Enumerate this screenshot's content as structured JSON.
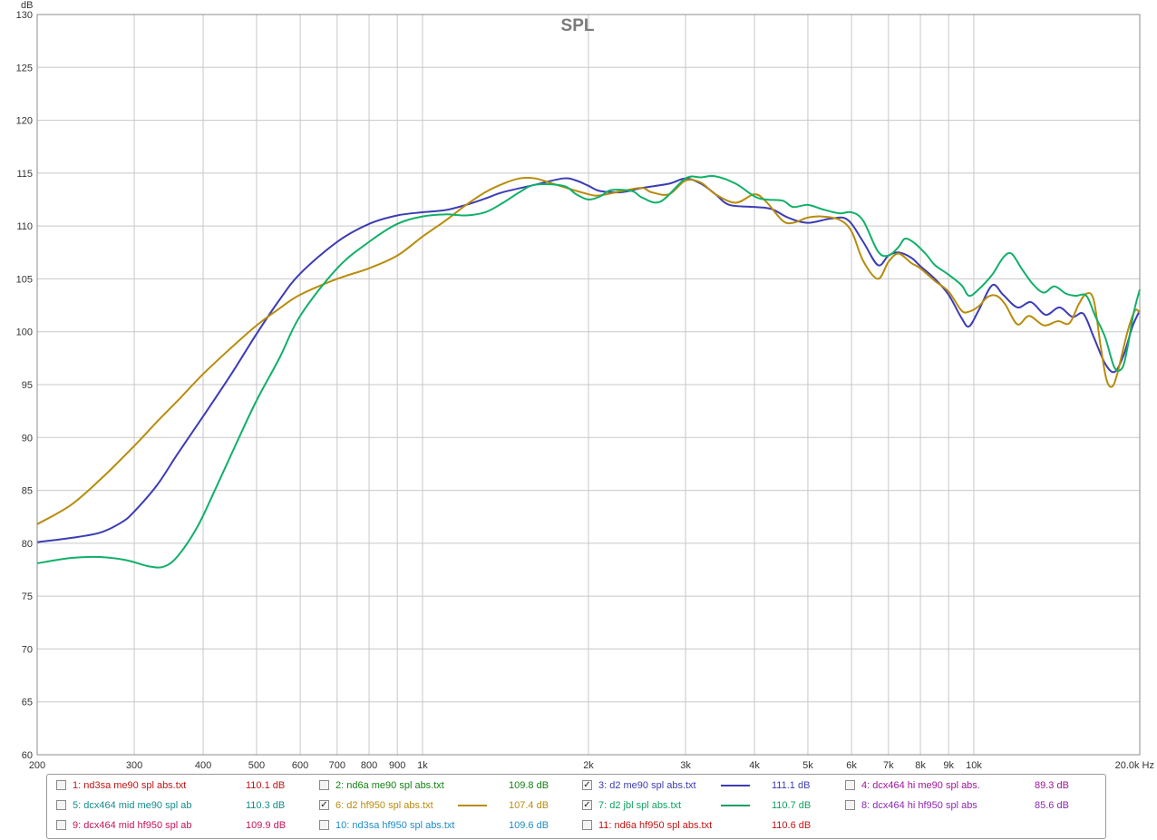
{
  "chart_data": {
    "type": "line",
    "title": "SPL",
    "ylabel": "dB",
    "xlabel": "",
    "x_unit": "Hz",
    "x_scale": "log",
    "xlim": [
      200,
      20000
    ],
    "ylim": [
      60,
      130
    ],
    "grid": true,
    "legend_position": "bottom",
    "y_ticks": [
      "60",
      "65",
      "70",
      "75",
      "80",
      "85",
      "90",
      "95",
      "100",
      "105",
      "110",
      "115",
      "120",
      "125",
      "130"
    ],
    "x_ticks": [
      {
        "value": 200,
        "label": "200"
      },
      {
        "value": 300,
        "label": "300"
      },
      {
        "value": 400,
        "label": "400"
      },
      {
        "value": 500,
        "label": "500"
      },
      {
        "value": 600,
        "label": "600"
      },
      {
        "value": 700,
        "label": "700"
      },
      {
        "value": 800,
        "label": "800"
      },
      {
        "value": 900,
        "label": "900"
      },
      {
        "value": 1000,
        "label": "1k"
      },
      {
        "value": 2000,
        "label": "2k"
      },
      {
        "value": 3000,
        "label": "3k"
      },
      {
        "value": 4000,
        "label": "4k"
      },
      {
        "value": 5000,
        "label": "5k"
      },
      {
        "value": 6000,
        "label": "6k"
      },
      {
        "value": 7000,
        "label": "7k"
      },
      {
        "value": 8000,
        "label": "8k"
      },
      {
        "value": 9000,
        "label": "9k"
      },
      {
        "value": 10000,
        "label": "10k"
      },
      {
        "value": 20000,
        "label": "20.0k Hz"
      }
    ],
    "series": [
      {
        "name": "3: d2 me90 spl abs.txt",
        "color": "#3c3cb4",
        "points": [
          [
            200,
            80.1
          ],
          [
            230,
            80.5
          ],
          [
            260,
            81.0
          ],
          [
            285,
            82.0
          ],
          [
            300,
            83.0
          ],
          [
            330,
            85.5
          ],
          [
            360,
            88.5
          ],
          [
            400,
            92.0
          ],
          [
            450,
            96.0
          ],
          [
            500,
            99.8
          ],
          [
            550,
            103.0
          ],
          [
            600,
            105.5
          ],
          [
            700,
            108.5
          ],
          [
            800,
            110.2
          ],
          [
            900,
            111.0
          ],
          [
            1000,
            111.3
          ],
          [
            1100,
            111.5
          ],
          [
            1200,
            112.0
          ],
          [
            1300,
            112.6
          ],
          [
            1400,
            113.2
          ],
          [
            1600,
            113.9
          ],
          [
            1800,
            114.5
          ],
          [
            1900,
            114.3
          ],
          [
            2000,
            113.8
          ],
          [
            2100,
            113.3
          ],
          [
            2300,
            113.2
          ],
          [
            2500,
            113.6
          ],
          [
            2800,
            114.0
          ],
          [
            3000,
            114.5
          ],
          [
            3200,
            114.0
          ],
          [
            3400,
            113.0
          ],
          [
            3600,
            112.0
          ],
          [
            4000,
            111.8
          ],
          [
            4300,
            111.6
          ],
          [
            4600,
            110.8
          ],
          [
            5000,
            110.3
          ],
          [
            5500,
            110.7
          ],
          [
            5900,
            110.6
          ],
          [
            6300,
            108.5
          ],
          [
            6700,
            106.3
          ],
          [
            7000,
            107.2
          ],
          [
            7300,
            107.5
          ],
          [
            7700,
            107.0
          ],
          [
            8000,
            106.2
          ],
          [
            8500,
            105.0
          ],
          [
            9000,
            103.5
          ],
          [
            9500,
            101.3
          ],
          [
            9800,
            100.5
          ],
          [
            10200,
            102.0
          ],
          [
            10800,
            104.4
          ],
          [
            11300,
            103.5
          ],
          [
            12000,
            102.3
          ],
          [
            12700,
            102.8
          ],
          [
            13500,
            101.6
          ],
          [
            14300,
            102.3
          ],
          [
            15100,
            101.4
          ],
          [
            15800,
            101.7
          ],
          [
            16500,
            99.5
          ],
          [
            17300,
            97.0
          ],
          [
            18000,
            96.2
          ],
          [
            18700,
            97.8
          ],
          [
            19400,
            100.5
          ],
          [
            20000,
            102.0
          ]
        ]
      },
      {
        "name": "6: d2 hf950 spl abs.txt",
        "color": "#b88c0c",
        "points": [
          [
            200,
            81.8
          ],
          [
            230,
            83.6
          ],
          [
            260,
            86.0
          ],
          [
            300,
            89.2
          ],
          [
            330,
            91.5
          ],
          [
            360,
            93.5
          ],
          [
            400,
            96.0
          ],
          [
            450,
            98.5
          ],
          [
            500,
            100.6
          ],
          [
            550,
            102.2
          ],
          [
            600,
            103.5
          ],
          [
            700,
            105.0
          ],
          [
            800,
            106.0
          ],
          [
            900,
            107.2
          ],
          [
            1000,
            109.0
          ],
          [
            1100,
            110.5
          ],
          [
            1200,
            112.0
          ],
          [
            1300,
            113.2
          ],
          [
            1400,
            114.0
          ],
          [
            1500,
            114.5
          ],
          [
            1600,
            114.5
          ],
          [
            1700,
            114.1
          ],
          [
            1800,
            113.7
          ],
          [
            2000,
            113.0
          ],
          [
            2100,
            112.9
          ],
          [
            2300,
            113.3
          ],
          [
            2500,
            113.6
          ],
          [
            2600,
            113.2
          ],
          [
            2800,
            113.0
          ],
          [
            3000,
            114.3
          ],
          [
            3200,
            114.1
          ],
          [
            3400,
            113.0
          ],
          [
            3700,
            112.2
          ],
          [
            4000,
            113.0
          ],
          [
            4200,
            112.3
          ],
          [
            4500,
            110.5
          ],
          [
            4700,
            110.3
          ],
          [
            5000,
            110.8
          ],
          [
            5300,
            110.9
          ],
          [
            5700,
            110.6
          ],
          [
            6000,
            109.5
          ],
          [
            6300,
            106.7
          ],
          [
            6700,
            105.0
          ],
          [
            7000,
            106.6
          ],
          [
            7300,
            107.4
          ],
          [
            7700,
            106.5
          ],
          [
            8000,
            106.0
          ],
          [
            8500,
            104.8
          ],
          [
            9000,
            103.8
          ],
          [
            9500,
            102.0
          ],
          [
            9800,
            101.9
          ],
          [
            10200,
            102.4
          ],
          [
            10600,
            103.3
          ],
          [
            11000,
            103.4
          ],
          [
            11400,
            102.6
          ],
          [
            12000,
            100.7
          ],
          [
            12600,
            101.5
          ],
          [
            13400,
            100.6
          ],
          [
            14200,
            101.0
          ],
          [
            14900,
            100.8
          ],
          [
            15500,
            102.6
          ],
          [
            16000,
            103.6
          ],
          [
            16500,
            103.0
          ],
          [
            17000,
            98.5
          ],
          [
            17400,
            95.5
          ],
          [
            17800,
            94.8
          ],
          [
            18200,
            96.0
          ],
          [
            19000,
            100.0
          ],
          [
            19600,
            102.0
          ],
          [
            20000,
            101.8
          ]
        ]
      },
      {
        "name": "7: d2 jbl spl abs.txt",
        "color": "#10b068",
        "points": [
          [
            200,
            78.1
          ],
          [
            230,
            78.6
          ],
          [
            260,
            78.7
          ],
          [
            290,
            78.4
          ],
          [
            320,
            77.8
          ],
          [
            340,
            77.8
          ],
          [
            360,
            78.8
          ],
          [
            390,
            81.5
          ],
          [
            420,
            85.0
          ],
          [
            460,
            89.5
          ],
          [
            500,
            93.5
          ],
          [
            550,
            97.5
          ],
          [
            600,
            101.5
          ],
          [
            700,
            106.0
          ],
          [
            800,
            108.5
          ],
          [
            900,
            110.2
          ],
          [
            1000,
            110.9
          ],
          [
            1100,
            111.1
          ],
          [
            1200,
            111.0
          ],
          [
            1300,
            111.3
          ],
          [
            1400,
            112.2
          ],
          [
            1500,
            113.2
          ],
          [
            1600,
            113.9
          ],
          [
            1800,
            113.8
          ],
          [
            1900,
            113.0
          ],
          [
            2000,
            112.5
          ],
          [
            2100,
            112.8
          ],
          [
            2200,
            113.4
          ],
          [
            2400,
            113.3
          ],
          [
            2500,
            112.7
          ],
          [
            2700,
            112.3
          ],
          [
            3000,
            114.5
          ],
          [
            3200,
            114.6
          ],
          [
            3400,
            114.7
          ],
          [
            3700,
            114.0
          ],
          [
            4000,
            112.8
          ],
          [
            4200,
            112.5
          ],
          [
            4500,
            112.4
          ],
          [
            4700,
            111.8
          ],
          [
            5000,
            112.0
          ],
          [
            5300,
            111.6
          ],
          [
            5700,
            111.2
          ],
          [
            6000,
            111.3
          ],
          [
            6300,
            110.5
          ],
          [
            6700,
            107.6
          ],
          [
            7000,
            107.2
          ],
          [
            7300,
            108.0
          ],
          [
            7500,
            108.8
          ],
          [
            7800,
            108.4
          ],
          [
            8200,
            107.3
          ],
          [
            8500,
            106.3
          ],
          [
            9000,
            105.4
          ],
          [
            9500,
            104.4
          ],
          [
            9800,
            103.4
          ],
          [
            10200,
            104.0
          ],
          [
            10800,
            105.4
          ],
          [
            11300,
            107.0
          ],
          [
            11700,
            107.4
          ],
          [
            12200,
            106.0
          ],
          [
            12800,
            104.5
          ],
          [
            13400,
            103.7
          ],
          [
            14000,
            104.3
          ],
          [
            14700,
            103.6
          ],
          [
            15300,
            103.4
          ],
          [
            16000,
            103.4
          ],
          [
            16600,
            101.5
          ],
          [
            17300,
            99.5
          ],
          [
            18000,
            96.6
          ],
          [
            18600,
            96.6
          ],
          [
            19000,
            98.5
          ],
          [
            19500,
            101.8
          ],
          [
            20000,
            104.0
          ]
        ]
      }
    ]
  },
  "legend": {
    "items": [
      {
        "label": "1: nd3sa me90 spl abs.txt",
        "value": "110.1 dB",
        "checked": false,
        "color": "#c41414",
        "swatch": false
      },
      {
        "label": "2: nd6a me90 spl abs.txt",
        "value": "109.8 dB",
        "checked": false,
        "color": "#148214",
        "swatch": false
      },
      {
        "label": "3: d2 me90 spl abs.txt",
        "value": "111.1 dB",
        "checked": true,
        "color": "#3c3cb4",
        "swatch": true
      },
      {
        "label": "4: dcx464 hi me90 spl abs.",
        "value": "89.3 dB",
        "checked": false,
        "color": "#a0149a",
        "swatch": false
      },
      {
        "label": "5: dcx464 mid me90 spl ab",
        "value": "110.3 dB",
        "checked": false,
        "color": "#148c8c",
        "swatch": false
      },
      {
        "label": "6: d2 hf950 spl abs.txt",
        "value": "107.4 dB",
        "checked": true,
        "color": "#b88c0c",
        "swatch": true
      },
      {
        "label": "7: d2 jbl spl abs.txt",
        "value": "110.7 dB",
        "checked": true,
        "color": "#10a060",
        "swatch": true
      },
      {
        "label": "8: dcx464 hi hf950 spl abs",
        "value": "85.6 dB",
        "checked": false,
        "color": "#8c28b4",
        "swatch": false
      },
      {
        "label": "9: dcx464 mid hf950 spl ab",
        "value": "109.9 dB",
        "checked": false,
        "color": "#c4145a",
        "swatch": false
      },
      {
        "label": "10: nd3sa hf950 spl abs.txt",
        "value": "109.6 dB",
        "checked": false,
        "color": "#1e8cc8",
        "swatch": false
      },
      {
        "label": "11: nd6a hf950 spl abs.txt",
        "value": "110.6 dB",
        "checked": false,
        "color": "#c41414",
        "swatch": false
      }
    ],
    "check_glyph": "✓"
  }
}
